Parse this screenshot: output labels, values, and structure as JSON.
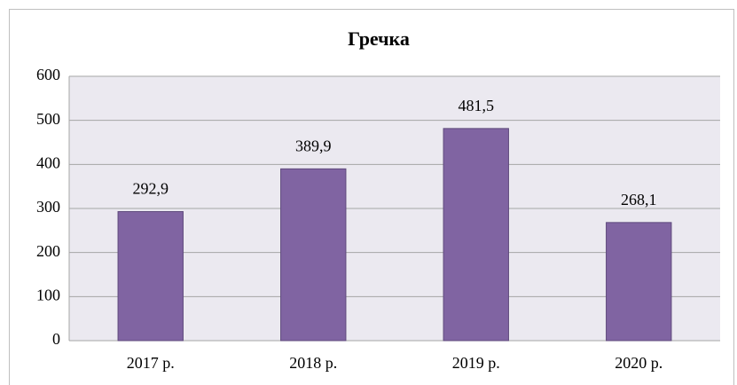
{
  "chart_data": {
    "type": "bar",
    "title": "Гречка",
    "categories": [
      "2017 р.",
      "2018 р.",
      "2019 р.",
      "2020 р."
    ],
    "values": [
      292.9,
      389.9,
      481.5,
      268.1
    ],
    "value_labels": [
      "292,9",
      "389,9",
      "481,5",
      "268,1"
    ],
    "color": "#8064a2",
    "ylim": [
      0,
      600
    ],
    "yticks": [
      0,
      100,
      200,
      300,
      400,
      500,
      600
    ],
    "grid": true
  }
}
